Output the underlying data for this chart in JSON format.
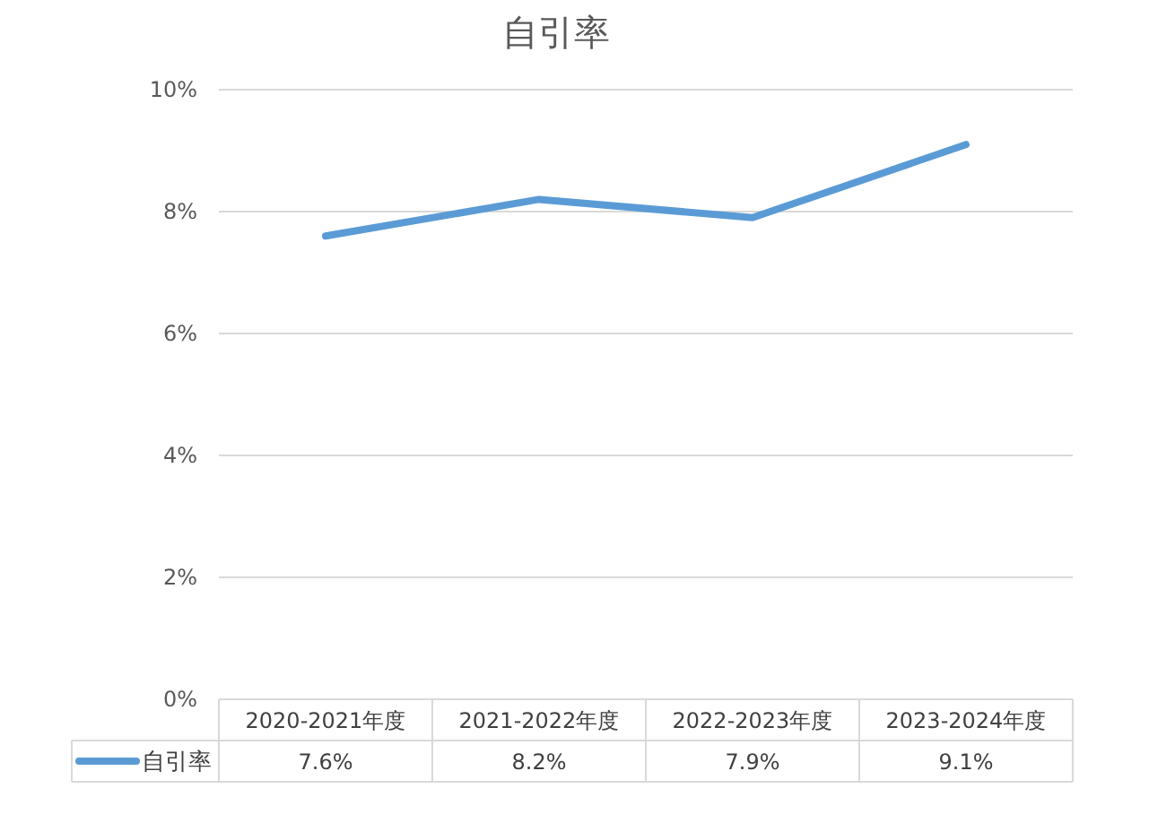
{
  "chart_data": {
    "type": "line",
    "title": "自引率",
    "categories": [
      "2020-2021年度",
      "2021-2022年度",
      "2022-2023年度",
      "2023-2024年度"
    ],
    "series": [
      {
        "name": "自引率",
        "color": "#5b9bd5",
        "values": [
          7.6,
          8.2,
          7.9,
          9.1
        ]
      }
    ],
    "value_labels": [
      "7.6%",
      "8.2%",
      "7.9%",
      "9.1%"
    ],
    "ylim": [
      0,
      10
    ],
    "yticks": [
      {
        "value": 0,
        "label": "0%"
      },
      {
        "value": 2,
        "label": "2%"
      },
      {
        "value": 4,
        "label": "4%"
      },
      {
        "value": 6,
        "label": "6%"
      },
      {
        "value": 8,
        "label": "8%"
      },
      {
        "value": 10,
        "label": "10%"
      }
    ],
    "grid": "y",
    "legend": "bottom left",
    "marker": "none",
    "line_style": "solid"
  }
}
